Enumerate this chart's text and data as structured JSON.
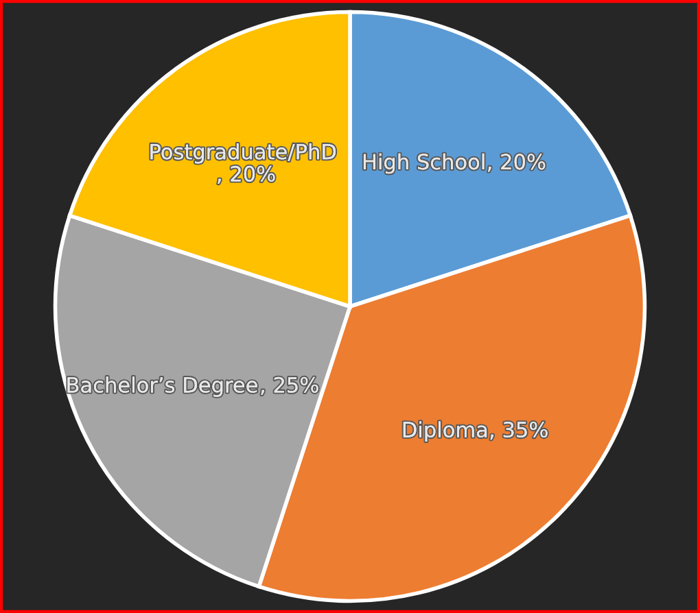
{
  "chart_data": {
    "type": "pie",
    "categories": [
      "High School",
      "Diploma",
      "Bachelor’s Degree",
      "Postgraduate/PhD "
    ],
    "values": [
      20,
      35,
      25,
      20
    ],
    "value_labels": [
      ", 20%",
      ", 35%",
      ", 25%",
      ", 20%"
    ],
    "data_labels": true,
    "colors": [
      "#5b9bd5",
      "#ed7d31",
      "#a5a5a5",
      "#ffc000"
    ],
    "legend": false
  }
}
